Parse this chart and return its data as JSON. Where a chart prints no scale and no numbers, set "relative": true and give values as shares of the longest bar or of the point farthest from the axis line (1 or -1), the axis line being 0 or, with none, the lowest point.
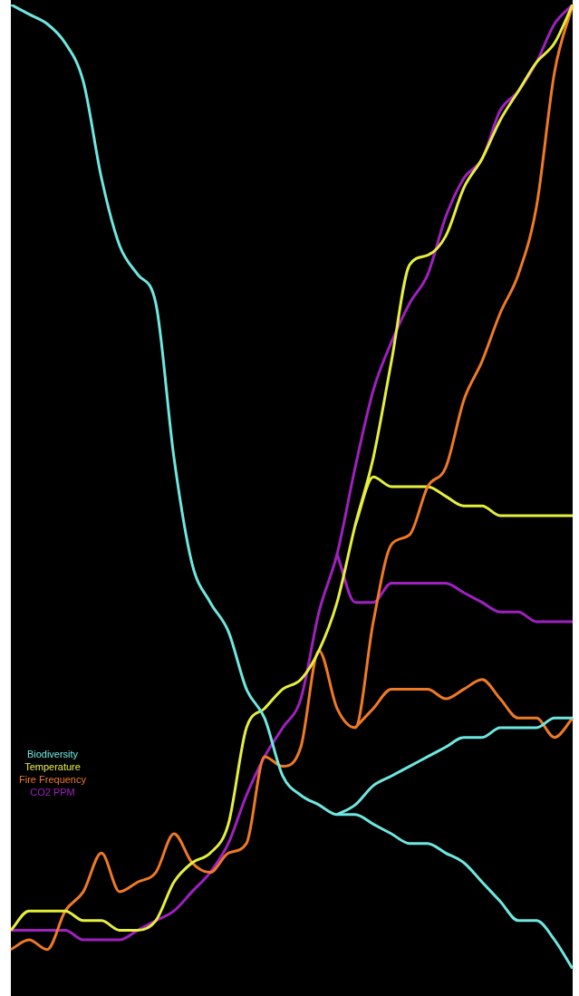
{
  "chart_data": {
    "type": "line",
    "relative": true,
    "legend": "bottom left",
    "marker": "none",
    "categories": [
      null,
      null,
      null,
      null,
      null,
      null,
      null,
      null,
      null,
      null,
      null,
      null,
      null,
      null,
      null,
      null,
      null,
      null,
      null,
      null,
      null,
      null,
      null,
      null,
      null,
      null,
      null,
      null,
      null,
      null,
      null,
      null
    ],
    "series": [
      {
        "name": "Biodiversity",
        "color": "#6ee8e0",
        "values": [
          1.0,
          0.99,
          0.98,
          0.96,
          0.92,
          0.82,
          0.75,
          0.72,
          0.69,
          0.53,
          0.42,
          0.38,
          0.35,
          0.29,
          0.26,
          0.2,
          0.18,
          0.17,
          0.16,
          0.16,
          0.15,
          0.14,
          0.13,
          0.13,
          0.12,
          0.11,
          0.09,
          0.07,
          0.05,
          0.05,
          0.03,
          0
        ]
      },
      {
        "name": "Temperature",
        "color": "#e6f03c",
        "values": [
          0.04,
          0.06,
          0.06,
          0.06,
          0.05,
          0.05,
          0.04,
          0.04,
          0.05,
          0.09,
          0.11,
          0.12,
          0.15,
          0.25,
          0.27,
          0.29,
          0.3,
          0.33,
          0.38,
          0.46,
          0.53,
          0.63,
          0.73,
          0.74,
          0.76,
          0.81,
          0.84,
          0.88,
          0.91,
          0.94,
          0.96,
          1.0
        ]
      },
      {
        "name": "Fire Frequency",
        "color": "#f07a24",
        "values": [
          0.02,
          0.03,
          0.02,
          0.06,
          0.08,
          0.12,
          0.08,
          0.09,
          0.1,
          0.14,
          0.11,
          0.1,
          0.12,
          0.13,
          0.22,
          0.21,
          0.23,
          0.33,
          0.27,
          0.25,
          0.36,
          0.44,
          0.45,
          0.5,
          0.52,
          0.59,
          0.63,
          0.68,
          0.72,
          0.79,
          0.93,
          1.0
        ]
      },
      {
        "name": "CO2 PPM",
        "color": "#a020c0",
        "values": [
          0.04,
          0.04,
          0.04,
          0.04,
          0.03,
          0.03,
          0.03,
          0.04,
          0.05,
          0.06,
          0.08,
          0.1,
          0.13,
          0.18,
          0.22,
          0.25,
          0.28,
          0.37,
          0.43,
          0.52,
          0.6,
          0.65,
          0.69,
          0.72,
          0.78,
          0.82,
          0.84,
          0.89,
          0.91,
          0.94,
          0.98,
          1.0
        ]
      },
      {
        "color": "#6ee8e0",
        "values": [
          null,
          null,
          null,
          null,
          null,
          null,
          null,
          null,
          null,
          null,
          null,
          null,
          null,
          null,
          null,
          null,
          null,
          null,
          0.16,
          0.17,
          0.19,
          0.2,
          0.21,
          0.22,
          0.23,
          0.24,
          0.24,
          0.25,
          0.25,
          0.25,
          0.26,
          0.26
        ]
      },
      {
        "color": "#e6f03c",
        "values": [
          null,
          null,
          null,
          null,
          null,
          null,
          null,
          null,
          null,
          null,
          null,
          null,
          null,
          null,
          null,
          null,
          null,
          null,
          null,
          0.46,
          0.51,
          0.5,
          0.5,
          0.5,
          0.49,
          0.48,
          0.48,
          0.47,
          0.47,
          0.47,
          0.47,
          0.47
        ]
      },
      {
        "color": "#f07a24",
        "values": [
          null,
          null,
          null,
          null,
          null,
          null,
          null,
          null,
          null,
          null,
          null,
          null,
          null,
          null,
          null,
          null,
          null,
          null,
          null,
          0.25,
          0.27,
          0.29,
          0.29,
          0.29,
          0.28,
          0.29,
          0.3,
          0.28,
          0.26,
          0.26,
          0.24,
          0.26
        ]
      },
      {
        "color": "#a020c0",
        "values": [
          null,
          null,
          null,
          null,
          null,
          null,
          null,
          null,
          null,
          null,
          null,
          null,
          null,
          null,
          null,
          null,
          null,
          null,
          0.43,
          0.38,
          0.38,
          0.4,
          0.4,
          0.4,
          0.4,
          0.39,
          0.38,
          0.37,
          0.37,
          0.36,
          0.36,
          0.36
        ]
      }
    ]
  }
}
